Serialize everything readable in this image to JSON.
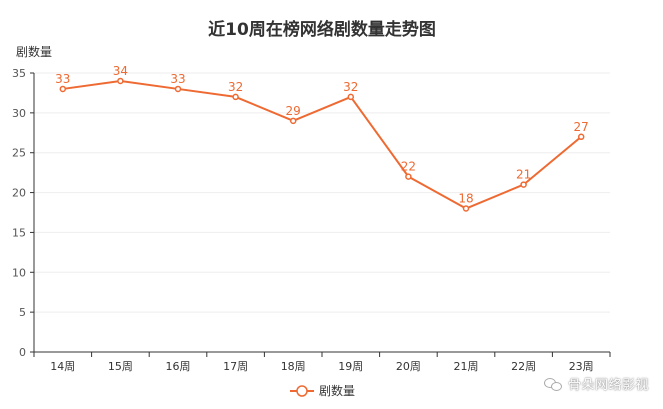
{
  "chart_data": {
    "type": "line",
    "title": "近10周在榜网络剧数量走势图",
    "ylabel": "剧数量",
    "xlabel": "",
    "categories": [
      "14周",
      "15周",
      "16周",
      "17周",
      "18周",
      "19周",
      "20周",
      "21周",
      "22周",
      "23周"
    ],
    "series": [
      {
        "name": "剧数量",
        "values": [
          33,
          34,
          33,
          32,
          29,
          32,
          22,
          18,
          21,
          27
        ],
        "color": "#ee6a32"
      }
    ],
    "ylim": [
      0,
      35
    ],
    "yticks": [
      0,
      5,
      10,
      15,
      20,
      25,
      30,
      35
    ],
    "grid": true,
    "legend": "bottom-center",
    "data_labels": true
  },
  "watermark": {
    "text": "骨朵网络影视"
  }
}
